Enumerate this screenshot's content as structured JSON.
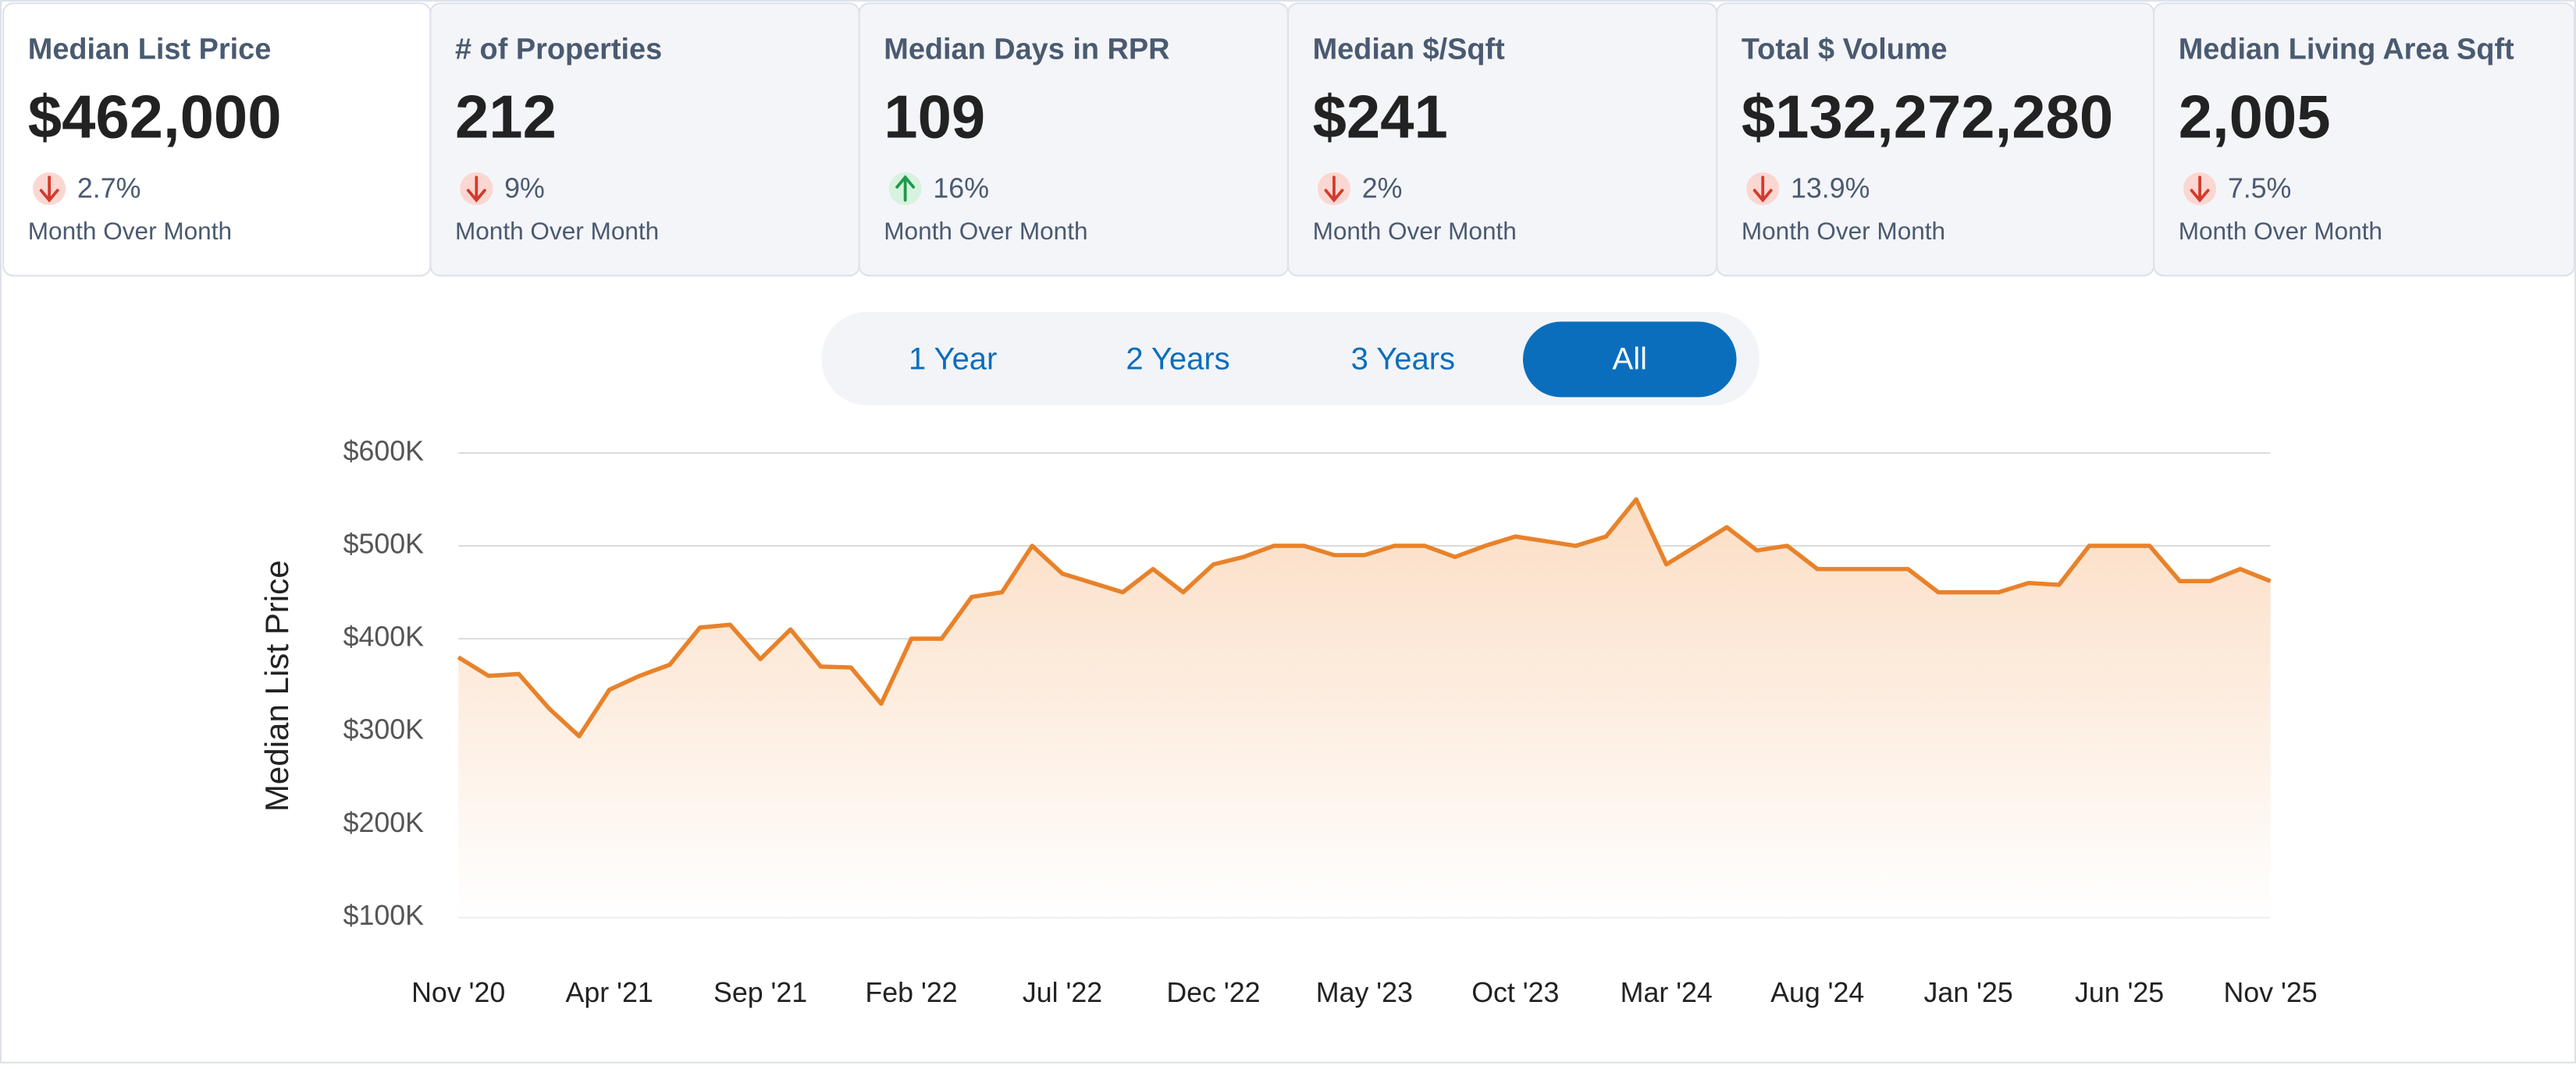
{
  "cards": [
    {
      "title": "Median List Price",
      "value": "$462,000",
      "change": "2.7%",
      "direction": "down",
      "period": "Month Over Month"
    },
    {
      "title": "# of Properties",
      "value": "212",
      "change": "9%",
      "direction": "down",
      "period": "Month Over Month"
    },
    {
      "title": "Median Days in RPR",
      "value": "109",
      "change": "16%",
      "direction": "up",
      "period": "Month Over Month"
    },
    {
      "title": "Median $/Sqft",
      "value": "$241",
      "change": "2%",
      "direction": "down",
      "period": "Month Over Month"
    },
    {
      "title": "Total $ Volume",
      "value": "$132,272,280",
      "change": "13.9%",
      "direction": "down",
      "period": "Month Over Month"
    },
    {
      "title": "Median Living Area Sqft",
      "value": "2,005",
      "change": "7.5%",
      "direction": "down",
      "period": "Month Over Month"
    }
  ],
  "range_options": [
    "1 Year",
    "2 Years",
    "3 Years",
    "All"
  ],
  "selected_range": 3,
  "chart_data": {
    "type": "line",
    "y_label": "Median List Price",
    "categories": [
      "Nov '20",
      null,
      null,
      null,
      null,
      "Apr '21",
      null,
      null,
      null,
      null,
      "Sep '21",
      null,
      null,
      null,
      null,
      "Feb '22",
      null,
      null,
      null,
      null,
      "Jul '22",
      null,
      null,
      null,
      null,
      "Dec '22",
      null,
      null,
      null,
      null,
      "May '23",
      null,
      null,
      null,
      null,
      "Oct '23",
      null,
      null,
      null,
      null,
      "Mar '24",
      null,
      null,
      null,
      null,
      "Aug '24",
      null,
      null,
      null,
      null,
      "Jan '25",
      null,
      null,
      null,
      null,
      "Jun '25",
      null,
      null,
      null,
      null,
      "Nov '25"
    ],
    "values": [
      380000,
      360000,
      362000,
      325000,
      295000,
      345000,
      360000,
      372000,
      412000,
      415000,
      378000,
      410000,
      370000,
      369000,
      330000,
      400000,
      400000,
      445000,
      450000,
      500000,
      470000,
      460000,
      450000,
      475000,
      450000,
      480000,
      488000,
      500000,
      500000,
      490000,
      490000,
      500000,
      500000,
      488000,
      500000,
      510000,
      505000,
      500000,
      510000,
      550000,
      480000,
      500000,
      520000,
      495000,
      500000,
      475000,
      475000,
      475000,
      475000,
      450000,
      450000,
      450000,
      460000,
      458000,
      500000,
      500000,
      500000,
      462000,
      462000,
      475000,
      462000
    ],
    "color": "#e8822a",
    "ylim": [
      100000,
      600000
    ],
    "yticks": [
      {
        "value": 100000,
        "label": "$100K"
      },
      {
        "value": 200000,
        "label": "$200K"
      },
      {
        "value": 300000,
        "label": "$300K"
      },
      {
        "value": 400000,
        "label": "$400K"
      },
      {
        "value": 500000,
        "label": "$500K"
      },
      {
        "value": 600000,
        "label": "$600K"
      }
    ],
    "grid": true
  }
}
